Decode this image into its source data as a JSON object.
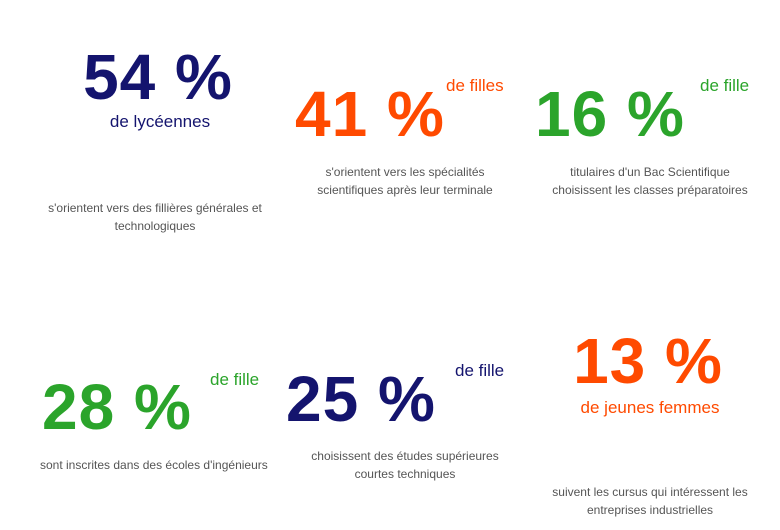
{
  "stats": [
    {
      "value": "54 %",
      "qualifier": "de lycéennes",
      "description": [
        "s'orientent vers des fillières générales et",
        "technologiques"
      ]
    },
    {
      "value": "41 %",
      "qualifier": "de filles",
      "description": [
        "s'orientent vers les spécialités",
        "scientifiques après leur terminale"
      ]
    },
    {
      "value": "16 %",
      "qualifier": "de fille",
      "description": [
        "titulaires d'un Bac Scientifique",
        "choisissent les classes préparatoires"
      ]
    },
    {
      "value": "28 %",
      "qualifier": "de fille",
      "description": [
        "sont inscrites dans des écoles d'ingénieurs"
      ]
    },
    {
      "value": "25 %",
      "qualifier": "de fille",
      "description": [
        "choisissent des études supérieures",
        "courtes techniques"
      ]
    },
    {
      "value": "13 %",
      "qualifier": "de jeunes femmes",
      "description": [
        "suivent les cursus qui intéressent les",
        "entreprises industrielles"
      ]
    }
  ]
}
